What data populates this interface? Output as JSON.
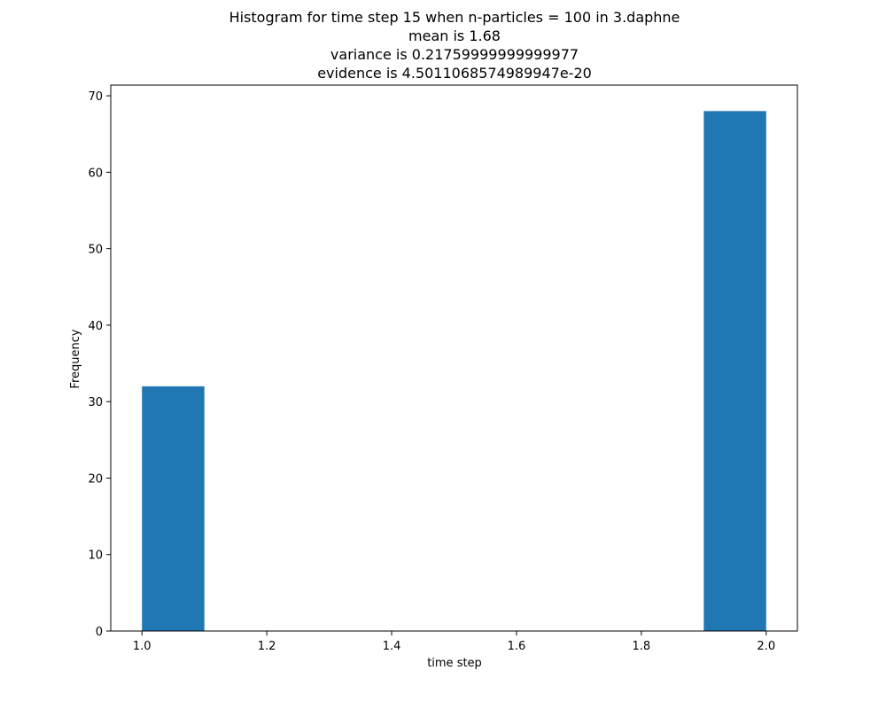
{
  "chart_data": {
    "type": "bar",
    "title_lines": [
      "Histogram for time step 15 when n-particles = 100 in 3.daphne",
      "mean is 1.68",
      "variance is 0.21759999999999977",
      "evidence is 4.5011068574989947e-20"
    ],
    "xlabel": "time step",
    "ylabel": "Frequency",
    "xlim": [
      0.95,
      2.05
    ],
    "ylim": [
      0,
      71.4
    ],
    "xticks": [
      1.0,
      1.2,
      1.4,
      1.6,
      1.8,
      2.0
    ],
    "xtick_labels": [
      "1.0",
      "1.2",
      "1.4",
      "1.6",
      "1.8",
      "2.0"
    ],
    "yticks": [
      0,
      10,
      20,
      30,
      40,
      50,
      60,
      70
    ],
    "ytick_labels": [
      "0",
      "10",
      "20",
      "30",
      "40",
      "50",
      "60",
      "70"
    ],
    "bins": [
      {
        "start": 1.0,
        "end": 1.1,
        "count": 32
      },
      {
        "start": 1.9,
        "end": 2.0,
        "count": 68
      }
    ],
    "bar_color": "#1f77b4",
    "grid": false
  }
}
